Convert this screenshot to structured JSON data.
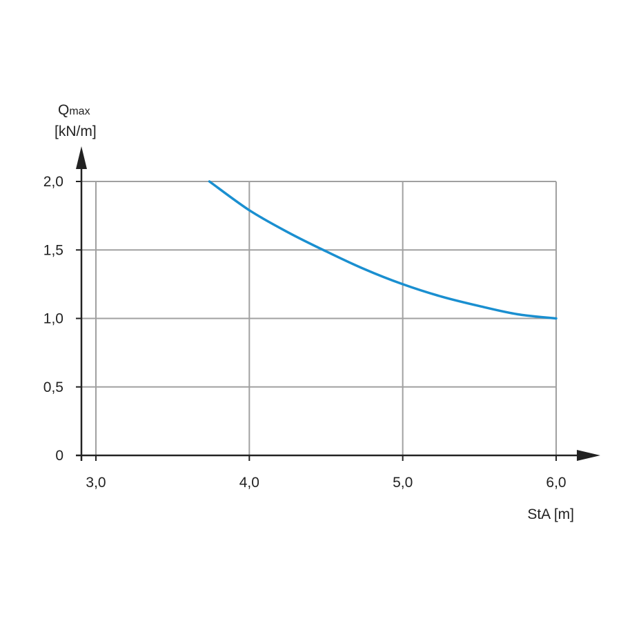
{
  "chart_data": {
    "type": "line",
    "title": "",
    "ylabel_main": "Q",
    "ylabel_sub": "max",
    "ylabel_unit": "[kN/m]",
    "xlabel": "StA [m]",
    "xlim": [
      3.0,
      6.0
    ],
    "ylim": [
      0,
      2.0
    ],
    "x_ticks": [
      3.0,
      4.0,
      5.0,
      6.0
    ],
    "x_tick_labels": [
      "3,0",
      "4,0",
      "5,0",
      "6,0"
    ],
    "y_ticks": [
      0,
      0.5,
      1.0,
      1.5,
      2.0
    ],
    "y_tick_labels": [
      "0",
      "0,5",
      "1,0",
      "1,5",
      "2,0"
    ],
    "grid": true,
    "line_color": "#1a8fd0",
    "grid_color": "#a0a0a0",
    "axis_color": "#222222",
    "series": [
      {
        "x": [
          3.74,
          4.0,
          4.25,
          4.5,
          4.75,
          5.0,
          5.25,
          5.5,
          5.75,
          6.0
        ],
        "values": [
          2.0,
          1.79,
          1.63,
          1.49,
          1.36,
          1.25,
          1.16,
          1.09,
          1.03,
          1.0
        ]
      }
    ]
  }
}
